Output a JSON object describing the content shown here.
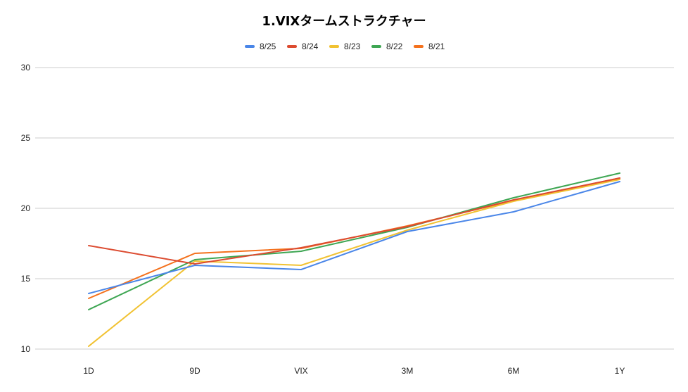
{
  "chart_data": {
    "type": "line",
    "title": "1.VIXタームストラクチャー",
    "xlabel": "",
    "ylabel": "",
    "categories": [
      "1D",
      "9D",
      "VIX",
      "3M",
      "6M",
      "1Y"
    ],
    "ylim": [
      10,
      30
    ],
    "yticks": [
      "10",
      "15",
      "20",
      "25",
      "30"
    ],
    "legend_position": "top",
    "grid": true,
    "series": [
      {
        "name": "8/25",
        "color": "#4a86e8",
        "values": [
          13.95,
          15.95,
          15.65,
          18.35,
          19.75,
          21.9
        ]
      },
      {
        "name": "8/24",
        "color": "#dc4b30",
        "values": [
          17.35,
          16.05,
          17.2,
          18.7,
          20.6,
          22.15
        ]
      },
      {
        "name": "8/23",
        "color": "#f1c232",
        "values": [
          10.2,
          16.25,
          15.95,
          18.45,
          20.5,
          22.05
        ]
      },
      {
        "name": "8/22",
        "color": "#3ea653",
        "values": [
          12.8,
          16.35,
          16.95,
          18.65,
          20.75,
          22.5
        ]
      },
      {
        "name": "8/21",
        "color": "#f4711d",
        "values": [
          13.6,
          16.8,
          17.15,
          18.75,
          20.55,
          22.15
        ]
      }
    ]
  }
}
